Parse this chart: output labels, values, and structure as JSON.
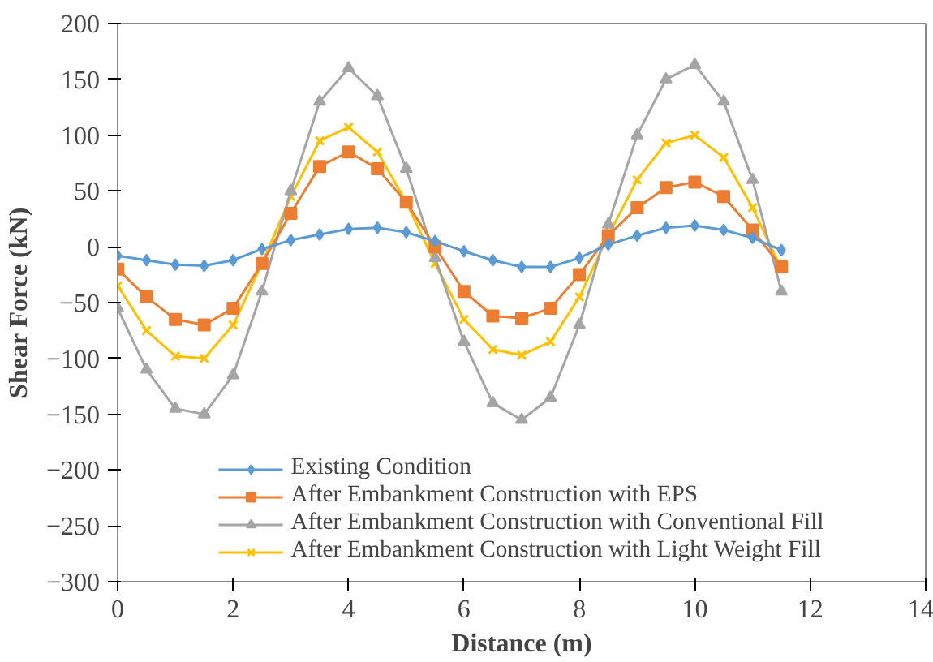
{
  "chart_data": {
    "type": "line",
    "xlabel": "Distance (m)",
    "ylabel": "Shear Force (kN)",
    "x": [
      0,
      0.5,
      1,
      1.5,
      2,
      2.5,
      3,
      3.5,
      4,
      4.5,
      5,
      5.5,
      6,
      6.5,
      7,
      7.5,
      8,
      8.5,
      9,
      9.5,
      10,
      10.5,
      11,
      11.5
    ],
    "xlim": [
      0,
      14
    ],
    "xticks": [
      0,
      2,
      4,
      6,
      8,
      10,
      12,
      14
    ],
    "ylim": [
      -300,
      200
    ],
    "yticks": [
      -300,
      -250,
      -200,
      -150,
      -100,
      -50,
      0,
      50,
      100,
      150,
      200
    ],
    "grid": false,
    "legend": "bottom",
    "series": [
      {
        "name": "Existing Condition",
        "color": "#5b9bd5",
        "marker": "diamond",
        "values": [
          -8,
          -12,
          -16,
          -17,
          -12,
          -2,
          6,
          11,
          16,
          17,
          13,
          5,
          -4,
          -12,
          -18,
          -18,
          -10,
          2,
          10,
          17,
          19,
          15,
          8,
          -3
        ]
      },
      {
        "name": "After Embankment Construction with EPS",
        "color": "#ed7d31",
        "marker": "square",
        "values": [
          -20,
          -45,
          -65,
          -70,
          -55,
          -15,
          30,
          72,
          85,
          70,
          40,
          0,
          -40,
          -62,
          -64,
          -55,
          -25,
          10,
          35,
          53,
          58,
          45,
          15,
          -18
        ]
      },
      {
        "name": "After Embankment Construction with Conventional Fill",
        "color": "#a5a5a5",
        "marker": "triangle",
        "values": [
          -55,
          -110,
          -145,
          -150,
          -115,
          -40,
          50,
          130,
          160,
          135,
          70,
          -10,
          -85,
          -140,
          -155,
          -135,
          -70,
          20,
          100,
          150,
          163,
          130,
          60,
          -40
        ]
      },
      {
        "name": "After Embankment Construction with Light Weight Fill",
        "color": "#ffc000",
        "marker": "cross",
        "values": [
          -35,
          -75,
          -98,
          -100,
          -70,
          -15,
          45,
          95,
          107,
          85,
          40,
          -15,
          -65,
          -92,
          -97,
          -85,
          -45,
          10,
          60,
          93,
          100,
          80,
          35,
          -20
        ]
      }
    ]
  }
}
